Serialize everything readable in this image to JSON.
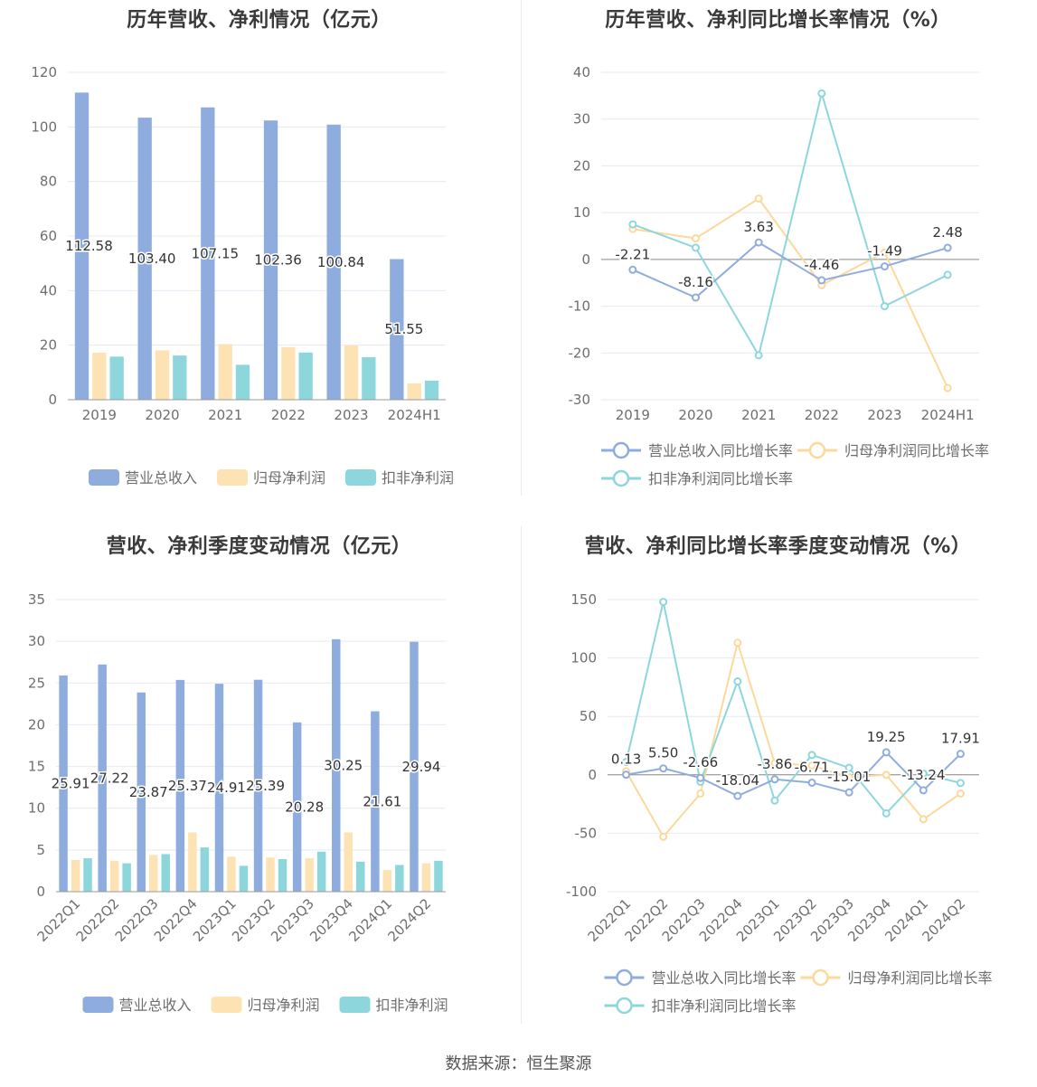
{
  "colors": {
    "revenue": "#8eadde",
    "net_profit": "#fde3b4",
    "deducted_profit": "#8dd7dc",
    "revenue_line": "#8eadde",
    "net_profit_line": "#fcd99a",
    "deducted_line": "#8dd7dc",
    "grid": "#e6e9f2",
    "axis_text": "#6e6e6e",
    "label_text": "#333333"
  },
  "legend_labels": [
    "营业总收入",
    "归母净利润",
    "扣非净利润"
  ],
  "legend_growth_labels": [
    "营业总收入同比增长率",
    "归母净利润同比增长率",
    "扣非净利润同比增长率"
  ],
  "source": "数据来源：恒生聚源",
  "chart_data": [
    {
      "type": "bar",
      "title": "历年营收、净利情况（亿元）",
      "categories": [
        "2019",
        "2020",
        "2021",
        "2022",
        "2023",
        "2024H1"
      ],
      "ylim": [
        0,
        120
      ],
      "yticks": [
        0,
        20,
        40,
        60,
        80,
        100,
        120
      ],
      "series": [
        {
          "name": "营业总收入",
          "values": [
            112.58,
            103.4,
            107.15,
            102.36,
            100.84,
            51.55
          ],
          "labels": [
            "112.58",
            "103.40",
            "107.15",
            "102.36",
            "100.84",
            "51.55"
          ]
        },
        {
          "name": "归母净利润",
          "values": [
            17.2,
            18.1,
            20.4,
            19.3,
            19.9,
            6.0
          ]
        },
        {
          "name": "扣非净利润",
          "values": [
            15.8,
            16.2,
            12.8,
            17.3,
            15.6,
            7.0
          ]
        }
      ],
      "grid": true,
      "legend": "bottom"
    },
    {
      "type": "line",
      "title": "历年营收、净利同比增长率情况（%）",
      "categories": [
        "2019",
        "2020",
        "2021",
        "2022",
        "2023",
        "2024H1"
      ],
      "ylim": [
        -30,
        40
      ],
      "yticks": [
        -30,
        -20,
        -10,
        0,
        10,
        20,
        30,
        40
      ],
      "series": [
        {
          "name": "营业总收入同比增长率",
          "values": [
            -2.21,
            -8.16,
            3.63,
            -4.46,
            -1.49,
            2.48
          ],
          "labels": [
            "-2.21",
            "-8.16",
            "3.63",
            "-4.46",
            "-1.49",
            "2.48"
          ]
        },
        {
          "name": "归母净利润同比增长率",
          "values": [
            6.5,
            4.5,
            13.0,
            -5.5,
            1.5,
            -27.5
          ]
        },
        {
          "name": "扣非净利润同比增长率",
          "values": [
            7.5,
            2.5,
            -20.5,
            35.5,
            -10.0,
            -3.3
          ]
        }
      ],
      "grid": true,
      "legend": "bottom"
    },
    {
      "type": "bar",
      "title": "营收、净利季度变动情况（亿元）",
      "categories": [
        "2022Q1",
        "2022Q2",
        "2022Q3",
        "2022Q4",
        "2023Q1",
        "2023Q2",
        "2023Q3",
        "2023Q4",
        "2024Q1",
        "2024Q2"
      ],
      "ylim": [
        0,
        35
      ],
      "yticks": [
        0,
        5,
        10,
        15,
        20,
        25,
        30,
        35
      ],
      "series": [
        {
          "name": "营业总收入",
          "values": [
            25.91,
            27.22,
            23.87,
            25.37,
            24.91,
            25.39,
            20.28,
            30.25,
            21.61,
            29.94
          ],
          "labels": [
            "25.91",
            "27.22",
            "23.87",
            "25.37",
            "24.91",
            "25.39",
            "20.28",
            "30.25",
            "21.61",
            "29.94"
          ]
        },
        {
          "name": "归母净利润",
          "values": [
            3.8,
            3.7,
            4.4,
            7.1,
            4.2,
            4.1,
            4.0,
            7.1,
            2.6,
            3.4
          ]
        },
        {
          "name": "扣非净利润",
          "values": [
            4.0,
            3.4,
            4.5,
            5.3,
            3.1,
            3.9,
            4.8,
            3.6,
            3.2,
            3.7
          ]
        }
      ],
      "grid": true,
      "legend": "bottom"
    },
    {
      "type": "line",
      "title": "营收、净利同比增长率季度变动情况（%）",
      "categories": [
        "2022Q1",
        "2022Q2",
        "2022Q3",
        "2022Q4",
        "2023Q1",
        "2023Q2",
        "2023Q3",
        "2023Q4",
        "2024Q1",
        "2024Q2"
      ],
      "ylim": [
        -100,
        150
      ],
      "yticks": [
        -100,
        -50,
        0,
        50,
        100,
        150
      ],
      "series": [
        {
          "name": "营业总收入同比增长率",
          "values": [
            0.13,
            5.5,
            -2.66,
            -18.04,
            -3.86,
            -6.71,
            -15.01,
            19.25,
            -13.24,
            17.91
          ],
          "labels": [
            "0.13",
            "5.50",
            "-2.66",
            "-18.04",
            "-3.86",
            "-6.71",
            "-15.01",
            "19.25",
            "-13.24",
            "17.91"
          ]
        },
        {
          "name": "归母净利润同比增长率",
          "values": [
            3,
            -53,
            -16,
            113,
            10,
            8,
            -2,
            0,
            -38,
            -16
          ]
        },
        {
          "name": "扣非净利润同比增长率",
          "values": [
            11,
            148,
            -6,
            80,
            -22,
            17,
            6,
            -33,
            1,
            -7
          ]
        }
      ],
      "grid": true,
      "legend": "bottom"
    }
  ]
}
